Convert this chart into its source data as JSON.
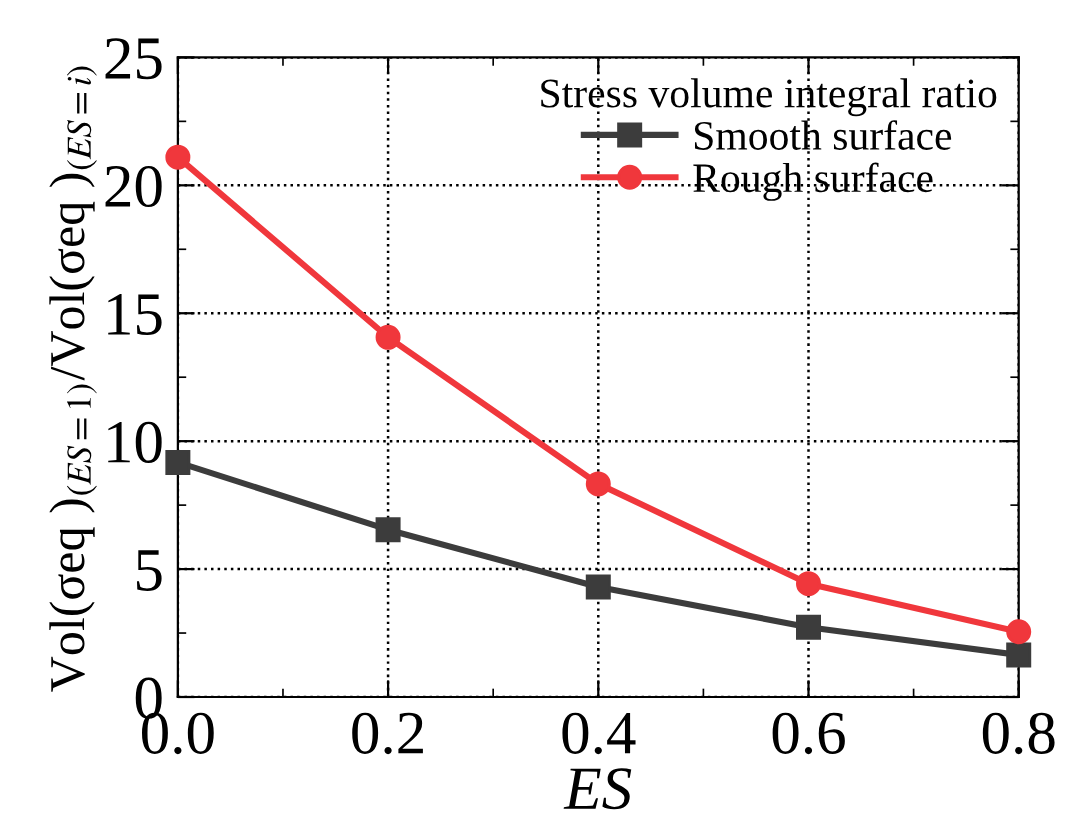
{
  "chart_data": {
    "type": "line",
    "xlabel": "ES",
    "ylabel": "Vol(σeq )$_{(ES=1)}$/Vol(σeq )$_{(ES=i)}$",
    "legend_title": "Stress volume integral ratio",
    "x": [
      0.0,
      0.2,
      0.4,
      0.6,
      0.8
    ],
    "series": [
      {
        "name": "Smooth surface",
        "color": "#3c3c3c",
        "marker": "square",
        "values": [
          9.17,
          6.54,
          4.3,
          2.73,
          1.64
        ]
      },
      {
        "name": "Rough surface",
        "color": "#f0373c",
        "marker": "circle",
        "values": [
          21.1,
          14.06,
          8.33,
          4.43,
          2.55
        ]
      }
    ],
    "xlim": [
      0,
      0.8
    ],
    "ylim": [
      0,
      25
    ],
    "xticks": [
      {
        "value": 0,
        "label": "0.0"
      },
      {
        "value": 0.1,
        "label": null
      },
      {
        "value": 0.2,
        "label": "0.2"
      },
      {
        "value": 0.3,
        "label": null
      },
      {
        "value": 0.4,
        "label": "0.4"
      },
      {
        "value": 0.5,
        "label": null
      },
      {
        "value": 0.6,
        "label": "0.6"
      },
      {
        "value": 0.7,
        "label": null
      },
      {
        "value": 0.8,
        "label": "0.8"
      }
    ],
    "yticks": [
      0,
      {
        "value": 2.5,
        "label": null
      },
      5,
      {
        "value": 7.5,
        "label": null
      },
      10,
      {
        "value": 12.5,
        "label": null
      },
      15,
      {
        "value": 17.5,
        "label": null
      },
      20,
      {
        "value": 22.5,
        "label": null
      },
      25
    ],
    "grid": true,
    "legend": "top right",
    "line_style": "solid"
  }
}
